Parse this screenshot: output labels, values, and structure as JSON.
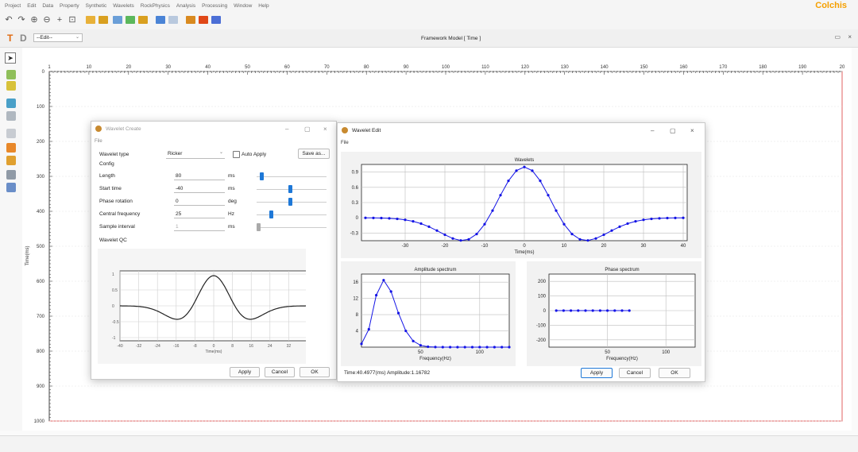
{
  "menu": [
    "Project",
    "Edit",
    "Data",
    "Property",
    "Synthetic",
    "Wavelets",
    "RockPhysics",
    "Analysis",
    "Processing",
    "Window",
    "Help"
  ],
  "brand": "Colchis",
  "tab": {
    "t_icon": "T",
    "d_icon": "D",
    "edit_select": "--Edit--",
    "title": "Framework Model [ Time ]"
  },
  "canvas": {
    "x_ticks": [
      "1",
      "10",
      "20",
      "30",
      "40",
      "50",
      "60",
      "70",
      "80",
      "90",
      "100",
      "110",
      "120",
      "130",
      "140",
      "150",
      "160",
      "170",
      "180",
      "190",
      "20"
    ],
    "y_ticks": [
      "0",
      "100",
      "200",
      "300",
      "400",
      "500",
      "600",
      "700",
      "800",
      "900",
      "1000"
    ],
    "y_axis_label": "Time(ms)"
  },
  "wavelet_create": {
    "title": "Wavelet Create",
    "file_menu": "File",
    "wavelet_type_label": "Wavelet type",
    "wavelet_type_value": "Ricker",
    "auto_apply_label": "Auto Apply",
    "save_as_label": "Save as...",
    "config_label": "Config",
    "params": [
      {
        "label": "Length",
        "value": "80",
        "unit": "ms",
        "slider": 0.05
      },
      {
        "label": "Start time",
        "value": "-40",
        "unit": "ms",
        "slider": 0.5
      },
      {
        "label": "Phase rotation",
        "value": "0",
        "unit": "deg",
        "slider": 0.5
      },
      {
        "label": "Central frequency",
        "value": "25",
        "unit": "Hz",
        "slider": 0.2
      },
      {
        "label": "Sample interval",
        "value": "1",
        "unit": "ms",
        "slider": 0.0
      }
    ],
    "qc_label": "Wavelet QC",
    "qc_y_ticks": [
      "1",
      "0.5",
      "0",
      "-0.5",
      "-1"
    ],
    "qc_x_ticks": [
      "-40",
      "-32",
      "-24",
      "-16",
      "-8",
      "0",
      "8",
      "16",
      "24",
      "32"
    ],
    "qc_xlabel": "Time(ms)",
    "apply_label": "Apply",
    "cancel_label": "Cancel",
    "ok_label": "OK"
  },
  "wavelet_edit": {
    "title": "Wavelet Edit",
    "file_menu": "File",
    "status": "Time:40.4977(ms) Amplitude:1.16782",
    "apply_label": "Apply",
    "cancel_label": "Cancel",
    "ok_label": "OK"
  },
  "chart_data": [
    {
      "type": "line",
      "title": "Wavelets",
      "xlabel": "Time(ms)",
      "ylabel": "",
      "xlim": [
        -41,
        41
      ],
      "ylim": [
        -0.45,
        1.05
      ],
      "x_ticks": [
        -30,
        -20,
        -10,
        0,
        10,
        20,
        30,
        40
      ],
      "y_ticks": [
        0.9,
        0.6,
        0.3,
        0,
        -0.3
      ],
      "series": [
        {
          "kind": "ricker",
          "f": 25,
          "step": 2,
          "tmin": -40,
          "tmax": 40,
          "color": "#1414e6"
        }
      ]
    },
    {
      "type": "line",
      "title": "Amplitude spectrum",
      "xlabel": "Frequency(Hz)",
      "ylabel": "",
      "xlim": [
        0,
        125
      ],
      "ylim": [
        0,
        18
      ],
      "x_ticks": [
        50,
        100
      ],
      "y_ticks": [
        16,
        12,
        8,
        4
      ],
      "series": [
        {
          "x": [
            0,
            6.25,
            12.5,
            18.75,
            25,
            31.25,
            37.5,
            43.75,
            50,
            56.25,
            62.5,
            68.75,
            75,
            81.25,
            87.5,
            93.75,
            100,
            106.25,
            112.5,
            118.75,
            125
          ],
          "y": [
            0.8,
            4.4,
            12.8,
            16.5,
            13.7,
            8.4,
            4.0,
            1.5,
            0.45,
            0.1,
            0.02,
            0,
            0,
            0,
            0,
            0,
            0,
            0,
            0,
            0,
            0
          ],
          "color": "#1414e6"
        }
      ]
    },
    {
      "type": "line",
      "title": "Phase spectrum",
      "xlabel": "Frequency(Hz)",
      "ylabel": "",
      "xlim": [
        0,
        125
      ],
      "ylim": [
        -250,
        250
      ],
      "x_ticks": [
        50,
        100
      ],
      "y_ticks": [
        200,
        100,
        0,
        -100,
        -200
      ],
      "series": [
        {
          "x": [
            6.25,
            12.5,
            18.75,
            25,
            31.25,
            37.5,
            43.75,
            50,
            56.25,
            62.5,
            68.75
          ],
          "y": [
            0,
            0,
            0,
            0,
            0,
            0,
            0,
            0,
            0,
            0,
            0
          ],
          "color": "#1414e6"
        }
      ]
    },
    {
      "type": "line",
      "title": "",
      "xlabel": "Time(ms)",
      "ylabel": "",
      "xlim": [
        -40,
        40
      ],
      "ylim": [
        -1.1,
        1.1
      ],
      "series": [
        {
          "kind": "ricker",
          "f": 25,
          "step": 0.5,
          "tmin": -40,
          "tmax": 40,
          "color": "#222222"
        }
      ]
    }
  ]
}
